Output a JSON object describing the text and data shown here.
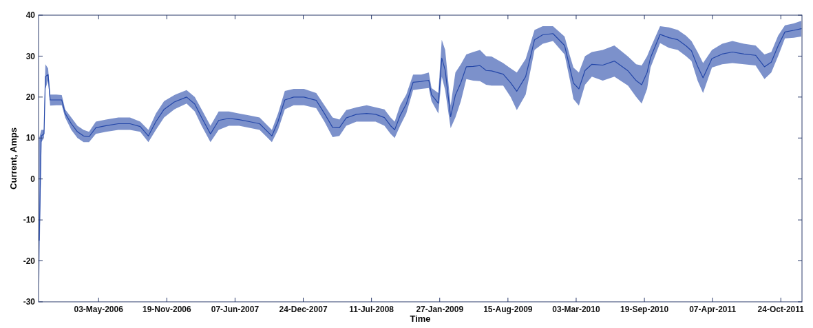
{
  "chart_data": {
    "type": "line",
    "xlabel": "Time",
    "ylabel": "Current, Amps",
    "xlim": [
      "2005-11-08",
      "2011-12-25"
    ],
    "ylim": [
      -30,
      40
    ],
    "yticks": [
      -30,
      -20,
      -10,
      0,
      10,
      20,
      30,
      40
    ],
    "xticks": [
      {
        "value": "2006-05-03",
        "label": "03-May-2006"
      },
      {
        "value": "2006-11-19",
        "label": "19-Nov-2006"
      },
      {
        "value": "2007-06-07",
        "label": "07-Jun-2007"
      },
      {
        "value": "2007-12-24",
        "label": "24-Dec-2007"
      },
      {
        "value": "2008-07-11",
        "label": "11-Jul-2008"
      },
      {
        "value": "2009-01-27",
        "label": "27-Jan-2009"
      },
      {
        "value": "2009-08-15",
        "label": "15-Aug-2009"
      },
      {
        "value": "2010-03-03",
        "label": "03-Mar-2010"
      },
      {
        "value": "2010-09-19",
        "label": "19-Sep-2010"
      },
      {
        "value": "2011-04-07",
        "label": "07-Apr-2011"
      },
      {
        "value": "2011-10-24",
        "label": "24-Oct-2011"
      }
    ],
    "grid": false,
    "marker": "none",
    "line_style": "solid",
    "series": [
      {
        "color": "#2447a8",
        "x": [
          "2005-11-10",
          "2005-11-16",
          "2005-11-24",
          "2005-11-28",
          "2005-12-06",
          "2005-12-12",
          "2005-12-30",
          "2006-01-15",
          "2006-01-25",
          "2006-02-12",
          "2006-03-02",
          "2006-03-20",
          "2006-04-05",
          "2006-04-25",
          "2006-05-25",
          "2006-06-30",
          "2006-08-03",
          "2006-09-02",
          "2006-09-26",
          "2006-10-18",
          "2006-11-11",
          "2006-12-11",
          "2007-01-16",
          "2007-02-09",
          "2007-03-01",
          "2007-03-27",
          "2007-04-20",
          "2007-05-20",
          "2007-06-19",
          "2007-07-19",
          "2007-08-18",
          "2007-09-11",
          "2007-09-23",
          "2007-10-11",
          "2007-10-31",
          "2007-11-26",
          "2007-12-26",
          "2008-01-31",
          "2008-02-24",
          "2008-03-19",
          "2008-04-08",
          "2008-04-28",
          "2008-05-28",
          "2008-06-27",
          "2008-07-23",
          "2008-08-18",
          "2008-09-05",
          "2008-09-17",
          "2008-10-03",
          "2008-10-21",
          "2008-11-10",
          "2008-12-04",
          "2008-12-26",
          "2009-01-03",
          "2009-01-23",
          "2009-02-02",
          "2009-02-12",
          "2009-02-28",
          "2009-03-14",
          "2009-03-30",
          "2009-04-15",
          "2009-05-05",
          "2009-05-25",
          "2009-06-12",
          "2009-06-28",
          "2009-08-01",
          "2009-08-23",
          "2009-09-10",
          "2009-10-06",
          "2009-11-01",
          "2009-11-25",
          "2009-12-25",
          "2010-01-28",
          "2010-02-13",
          "2010-02-23",
          "2010-03-11",
          "2010-03-29",
          "2010-04-18",
          "2010-05-20",
          "2010-06-23",
          "2010-08-02",
          "2010-08-26",
          "2010-09-11",
          "2010-09-27",
          "2010-10-07",
          "2010-11-04",
          "2010-11-30",
          "2010-12-26",
          "2011-01-19",
          "2011-02-04",
          "2011-02-22",
          "2011-03-10",
          "2011-04-05",
          "2011-05-05",
          "2011-06-04",
          "2011-07-08",
          "2011-08-11",
          "2011-09-06",
          "2011-09-26",
          "2011-10-16",
          "2011-11-05",
          "2011-12-01",
          "2011-12-23"
        ],
        "values": [
          -15,
          10.5,
          11,
          25,
          25.5,
          19.3,
          19.3,
          19.3,
          16,
          13.5,
          11.5,
          10.5,
          10.3,
          12.5,
          13,
          13.5,
          13.5,
          12.8,
          10.5,
          14,
          17,
          18.8,
          20,
          18.3,
          15,
          11,
          14.3,
          14.8,
          14.5,
          14,
          13.5,
          11.5,
          10.5,
          14,
          19.3,
          20,
          20,
          19.2,
          16,
          12.6,
          12.5,
          14.9,
          15.8,
          16,
          15.8,
          15,
          13,
          12,
          15.5,
          18.3,
          23.6,
          23.8,
          24.1,
          20.6,
          18.5,
          29.5,
          26.6,
          15.2,
          20.5,
          23.5,
          27.4,
          27.5,
          27.7,
          26.5,
          26.4,
          25.6,
          23.5,
          21.4,
          25,
          34,
          35.2,
          35.5,
          32.6,
          27,
          23.4,
          22,
          26.5,
          28,
          27.8,
          28.8,
          26.4,
          24,
          23,
          26,
          29.6,
          35.3,
          34.5,
          34,
          32.5,
          31.3,
          27.5,
          24.7,
          29.4,
          30.5,
          31,
          30.5,
          30.2,
          27.4,
          28.5,
          32.5,
          35.9,
          36.3,
          36.7
        ],
        "lower": [
          -26,
          9,
          10,
          22,
          24,
          17.9,
          18,
          18,
          15,
          12,
          10,
          9,
          9,
          11,
          11.5,
          12,
          12,
          11.5,
          9,
          12,
          15,
          17,
          18.4,
          16.5,
          13,
          9,
          12,
          13,
          13,
          12.5,
          12,
          10,
          9,
          12,
          17,
          18,
          18,
          17.3,
          14,
          10.2,
          10.5,
          13,
          14,
          14,
          14,
          13,
          11,
          10,
          13,
          16,
          21.7,
          22,
          22.2,
          19,
          16,
          25,
          21.7,
          12.4,
          15,
          19,
          24.4,
          24,
          23.9,
          23,
          22.8,
          22.8,
          20,
          16.8,
          20.6,
          31.5,
          33,
          33.7,
          30.4,
          24,
          19.5,
          17.9,
          23,
          25,
          24,
          25,
          22.8,
          20,
          18.4,
          22,
          27.2,
          33.2,
          32,
          31.5,
          30,
          28.8,
          24,
          21,
          27.2,
          28,
          28.3,
          28,
          27.7,
          24.4,
          26,
          30,
          34.3,
          34.5,
          34.8
        ],
        "upper": [
          10,
          12,
          12,
          28,
          27,
          20.6,
          20.6,
          20.5,
          17,
          15,
          13,
          12,
          11.5,
          14,
          14.5,
          15,
          15,
          14,
          12,
          16,
          19,
          20.5,
          21.7,
          20,
          17,
          13,
          16.5,
          16.5,
          16,
          15.5,
          15,
          13,
          12,
          16,
          21.5,
          22,
          22,
          21,
          18,
          15,
          14.5,
          16.8,
          17.5,
          18,
          17.5,
          17,
          15,
          14,
          18,
          20.6,
          25.5,
          25.5,
          26,
          22.2,
          21,
          34,
          31.5,
          17.9,
          26,
          28,
          30.4,
          31,
          31.5,
          30,
          29.9,
          28.3,
          27,
          26,
          29.3,
          36.4,
          37.3,
          37.3,
          34.8,
          30,
          27.2,
          26,
          30,
          31,
          31.5,
          32.6,
          29.9,
          28,
          27.7,
          30,
          32,
          37.3,
          37,
          36.4,
          35,
          33.7,
          31,
          28.3,
          31.5,
          33,
          33.7,
          33,
          32.6,
          30.4,
          31,
          35,
          37.5,
          38,
          38.6
        ]
      }
    ]
  }
}
